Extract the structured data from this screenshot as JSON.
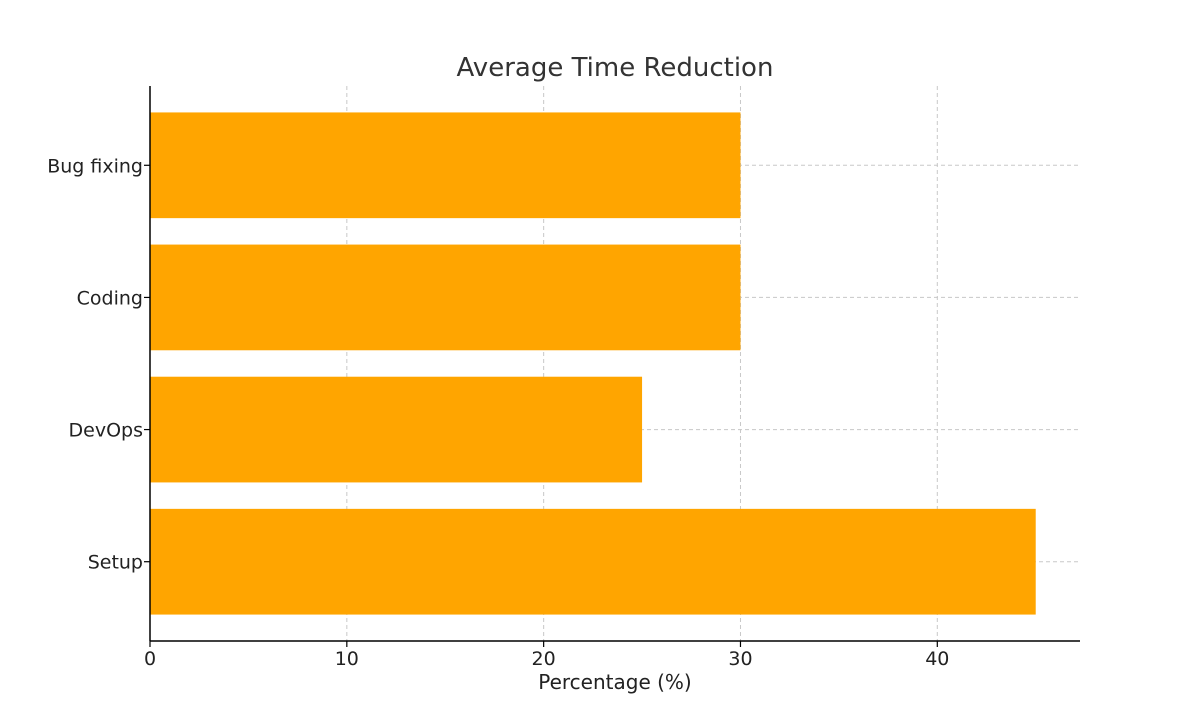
{
  "chart_data": {
    "type": "bar",
    "orientation": "horizontal",
    "title": "Average Time Reduction",
    "xlabel": "Percentage (%)",
    "ylabel": "",
    "categories": [
      "Setup",
      "DevOps",
      "Coding",
      "Bug fixing"
    ],
    "values": [
      45,
      25,
      30,
      30
    ],
    "xlim": [
      0,
      47.25
    ],
    "xticks": [
      0,
      10,
      20,
      30,
      40
    ],
    "grid": true,
    "bar_color": "#FFA500"
  }
}
